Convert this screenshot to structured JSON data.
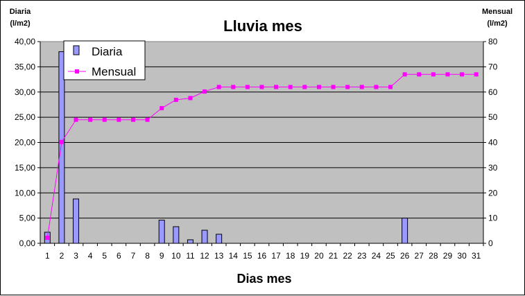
{
  "chart_data": {
    "type": "bar",
    "title": "Lluvia mes",
    "xlabel": "Dias mes",
    "y_left_label": [
      "Diaria",
      "(l/m2)"
    ],
    "y_right_label": [
      "Mensual",
      "(l/m2)"
    ],
    "ylim_left": [
      0,
      40
    ],
    "ylim_right": [
      0,
      80
    ],
    "y_left_ticks": [
      "0,00",
      "5,00",
      "10,00",
      "15,00",
      "20,00",
      "25,00",
      "30,00",
      "35,00",
      "40,00"
    ],
    "y_right_ticks": [
      "0",
      "10",
      "20",
      "30",
      "40",
      "50",
      "60",
      "70",
      "80"
    ],
    "categories": [
      "1",
      "2",
      "3",
      "4",
      "5",
      "6",
      "7",
      "8",
      "9",
      "10",
      "11",
      "12",
      "13",
      "14",
      "15",
      "16",
      "17",
      "18",
      "19",
      "20",
      "21",
      "22",
      "23",
      "24",
      "25",
      "26",
      "27",
      "28",
      "29",
      "30",
      "31"
    ],
    "grid": true,
    "legend_position": "top-left",
    "series": [
      {
        "name": "Diaria",
        "type": "bar",
        "axis": "left",
        "color": "#9999ff",
        "values": [
          2.2,
          38.0,
          8.8,
          0,
          0,
          0,
          0,
          0,
          4.6,
          3.3,
          0.7,
          2.6,
          1.8,
          0,
          0,
          0,
          0,
          0,
          0,
          0,
          0,
          0,
          0,
          0,
          0,
          5.0,
          0,
          0,
          0,
          0,
          0
        ]
      },
      {
        "name": "Mensual",
        "type": "line",
        "axis": "right",
        "color": "#ff00ff",
        "values": [
          2.2,
          40.2,
          49.0,
          49.0,
          49.0,
          49.0,
          49.0,
          49.0,
          53.6,
          56.9,
          57.6,
          60.2,
          62.0,
          62.0,
          62.0,
          62.0,
          62.0,
          62.0,
          62.0,
          62.0,
          62.0,
          62.0,
          62.0,
          62.0,
          62.0,
          67.0,
          67.0,
          67.0,
          67.0,
          67.0,
          67.0
        ]
      }
    ]
  }
}
